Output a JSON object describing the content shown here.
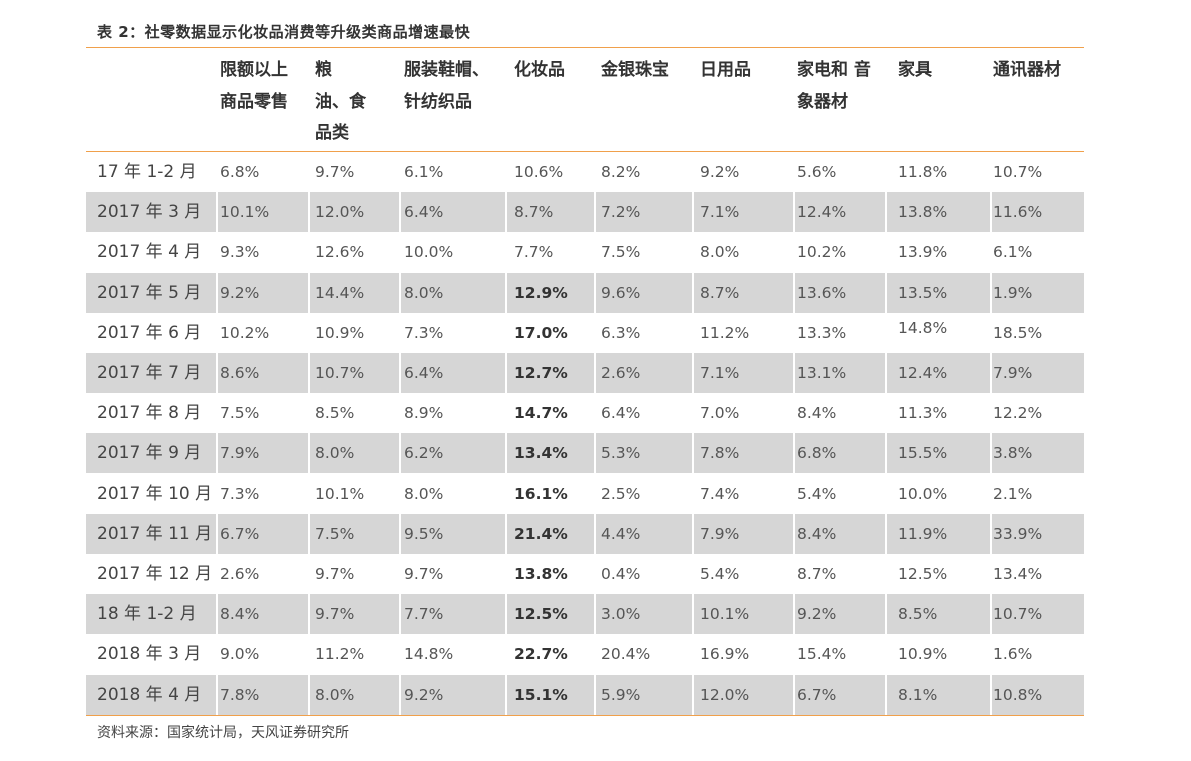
{
  "title": "表 2：社零数据显示化妆品消费等升级类商品增速最快",
  "columns": [
    {
      "lines": [
        "限额以上",
        "商品零售"
      ]
    },
    {
      "lines": [
        "粮",
        "油、食",
        "品类"
      ]
    },
    {
      "lines": [
        "服装鞋帽、",
        "针纺织品"
      ]
    },
    {
      "lines": [
        "化妆品"
      ]
    },
    {
      "lines": [
        "金银珠宝"
      ]
    },
    {
      "lines": [
        "日用品"
      ]
    },
    {
      "lines": [
        "家电和 音",
        "象器材"
      ]
    },
    {
      "lines": [
        "家具"
      ]
    },
    {
      "lines": [
        "通讯器材"
      ]
    }
  ],
  "rows": [
    {
      "month": "17 年 1-2 月",
      "values": [
        "6.8%",
        "9.7%",
        "6.1%",
        "10.6%",
        "8.2%",
        "9.2%",
        "5.6%",
        "11.8%",
        "10.7%"
      ],
      "highlight": false
    },
    {
      "month": "2017 年 3 月",
      "values": [
        "10.1%",
        "12.0%",
        "6.4%",
        "8.7%",
        "7.2%",
        "7.1%",
        "12.4%",
        "13.8%",
        "11.6%"
      ],
      "highlight": false
    },
    {
      "month": "2017 年 4 月",
      "values": [
        "9.3%",
        "12.6%",
        "10.0%",
        "7.7%",
        "7.5%",
        "8.0%",
        "10.2%",
        "13.9%",
        "6.1%"
      ],
      "highlight": false
    },
    {
      "month": "2017 年 5 月",
      "values": [
        "9.2%",
        "14.4%",
        "8.0%",
        "12.9%",
        "9.6%",
        "8.7%",
        "13.6%",
        "13.5%",
        "1.9%"
      ],
      "highlight": true
    },
    {
      "month": "2017 年 6 月",
      "values": [
        "10.2%",
        "10.9%",
        "7.3%",
        "17.0%",
        "6.3%",
        "11.2%",
        "13.3%",
        "14.8%",
        "18.5%"
      ],
      "highlight": true
    },
    {
      "month": "2017 年 7 月",
      "values": [
        "8.6%",
        "10.7%",
        "6.4%",
        "12.7%",
        "2.6%",
        "7.1%",
        "13.1%",
        "12.4%",
        "7.9%"
      ],
      "highlight": true
    },
    {
      "month": "2017 年 8 月",
      "values": [
        "7.5%",
        "8.5%",
        "8.9%",
        "14.7%",
        "6.4%",
        "7.0%",
        "8.4%",
        "11.3%",
        "12.2%"
      ],
      "highlight": true
    },
    {
      "month": "2017 年 9 月",
      "values": [
        "7.9%",
        "8.0%",
        "6.2%",
        "13.4%",
        "5.3%",
        "7.8%",
        "6.8%",
        "15.5%",
        "3.8%"
      ],
      "highlight": true
    },
    {
      "month": "2017 年 10 月",
      "values": [
        "7.3%",
        "10.1%",
        "8.0%",
        "16.1%",
        "2.5%",
        "7.4%",
        "5.4%",
        "10.0%",
        "2.1%"
      ],
      "highlight": true
    },
    {
      "month": "2017 年 11 月",
      "values": [
        "6.7%",
        "7.5%",
        "9.5%",
        "21.4%",
        "4.4%",
        "7.9%",
        "8.4%",
        "11.9%",
        "33.9%"
      ],
      "highlight": true
    },
    {
      "month": "2017 年 12 月",
      "values": [
        "2.6%",
        "9.7%",
        "9.7%",
        "13.8%",
        "0.4%",
        "5.4%",
        "8.7%",
        "12.5%",
        "13.4%"
      ],
      "highlight": true
    },
    {
      "month": "18 年 1-2 月",
      "values": [
        "8.4%",
        "9.7%",
        "7.7%",
        "12.5%",
        "3.0%",
        "10.1%",
        "9.2%",
        "8.5%",
        "10.7%"
      ],
      "highlight": true
    },
    {
      "month": "2018 年 3 月",
      "values": [
        "9.0%",
        "11.2%",
        "14.8%",
        "22.7%",
        "20.4%",
        "16.9%",
        "15.4%",
        "10.9%",
        "1.6%"
      ],
      "highlight": true
    },
    {
      "month": "2018 年 4 月",
      "values": [
        "7.8%",
        "8.0%",
        "9.2%",
        "15.1%",
        "5.9%",
        "12.0%",
        "6.7%",
        "8.1%",
        "10.8%"
      ],
      "highlight": true
    }
  ],
  "source": "资料来源：国家统计局，天风证券研究所"
}
